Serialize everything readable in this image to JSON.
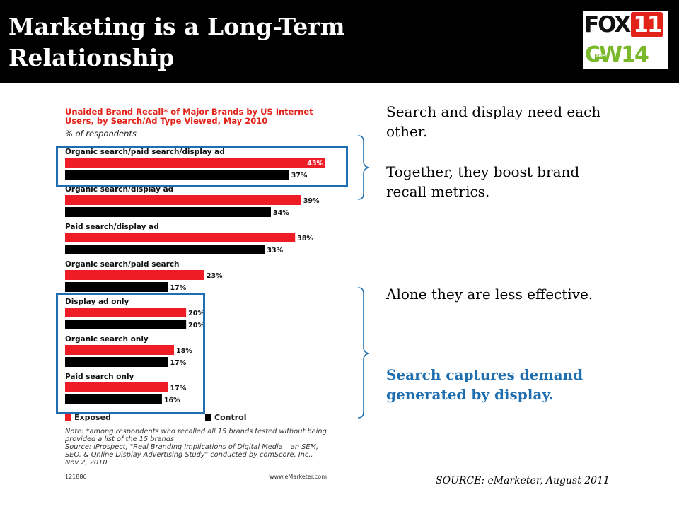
{
  "slide": {
    "title_line1": "Marketing is a Long-Term",
    "title_line2": "Relationship",
    "logo": {
      "fox_text": "FOX",
      "fox_number": "11",
      "cw_text": "CW",
      "cw_the": "THE",
      "cw_number": "14"
    },
    "text_block_1a": "Search and display need each other.",
    "text_block_1b": "Together, they boost brand recall metrics.",
    "text_block_2a": "Alone they are less effective.",
    "text_block_2b": "Search captures demand generated by display.",
    "source": "SOURCE: eMarketer, August 2011",
    "colors": {
      "header_bg": "#000000",
      "accent_blue": "#1f6fb0"
    }
  },
  "chart_data": {
    "type": "bar",
    "orientation": "horizontal",
    "title": "Unaided Brand Recall* of Major Brands by US Internet Users, by Search/Ad Type Viewed, May 2010",
    "subtitle": "% of respondents",
    "categories": [
      "Organic search/paid search/display ad",
      "Organic search/display ad",
      "Paid search/display ad",
      "Organic search/paid search",
      "Display ad only",
      "Organic search only",
      "Paid search only"
    ],
    "series": [
      {
        "name": "Exposed",
        "color": "#ee1c25",
        "values": [
          43,
          39,
          38,
          23,
          20,
          18,
          17
        ],
        "labels": [
          "43%",
          "39%",
          "38%",
          "23%",
          "20%",
          "18%",
          "17%"
        ]
      },
      {
        "name": "Control",
        "color": "#000000",
        "values": [
          37,
          34,
          33,
          17,
          20,
          17,
          16
        ],
        "labels": [
          "37%",
          "34%",
          "33%",
          "17%",
          "20%",
          "17%",
          "16%"
        ]
      }
    ],
    "xlim": [
      0,
      43
    ],
    "legend_position": "bottom",
    "grid": false,
    "note": "Note: *among respondents who recalled all 15 brands tested without being provided a list of the 15 brands",
    "source": "Source: iProspect, \"Real Branding Implications of Digital Media – an SEM, SEO, & Online Display Advertising Study\" conducted by comScore, Inc., Nov 2, 2010",
    "chart_id": "121886",
    "site": "www.eMarketer.com"
  }
}
